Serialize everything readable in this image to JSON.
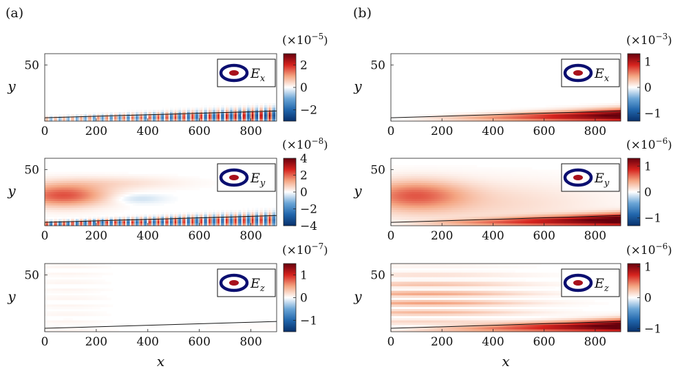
{
  "panel_labels": [
    "(a)",
    "(b)"
  ],
  "chart_data": [
    {
      "type": "heatmap",
      "panel": "(a)",
      "quantity": "Ex",
      "legend_label": "E",
      "legend_sub": "x",
      "xlabel": "",
      "ylabel": "y",
      "xlim": [
        0,
        900
      ],
      "ylim": [
        0,
        60
      ],
      "xticks": [
        0,
        200,
        400,
        600,
        800
      ],
      "yticks": [
        50
      ],
      "colorbar_exponent": "−5",
      "colorbar_limits": [
        -3,
        3
      ],
      "colorbar_ticks": [
        -2,
        0,
        2
      ],
      "colorbar_ticklabels": [
        "−2",
        "0",
        "2"
      ],
      "boundary_layer": {
        "x": [
          0,
          900
        ],
        "y": [
          3,
          9
        ]
      },
      "pattern": "oscillating near wall",
      "amplitude": 1.0
    },
    {
      "type": "heatmap",
      "panel": "(a)",
      "quantity": "Ey",
      "legend_label": "E",
      "legend_sub": "y",
      "xlabel": "",
      "ylabel": "y",
      "xlim": [
        0,
        900
      ],
      "ylim": [
        0,
        60
      ],
      "xticks": [
        0,
        200,
        400,
        600,
        800
      ],
      "yticks": [
        50
      ],
      "colorbar_exponent": "−8",
      "colorbar_limits": [
        -4,
        4
      ],
      "colorbar_ticks": [
        -4,
        -2,
        0,
        2,
        4
      ],
      "colorbar_ticklabels": [
        "−4",
        "−2",
        "0",
        "2",
        "4"
      ],
      "boundary_layer": {
        "x": [
          0,
          900
        ],
        "y": [
          3,
          9
        ]
      },
      "pattern": "freestream plus oscillating wall",
      "amplitude": 1.0
    },
    {
      "type": "heatmap",
      "panel": "(a)",
      "quantity": "Ez",
      "legend_label": "E",
      "legend_sub": "z",
      "xlabel": "x",
      "ylabel": "y",
      "xlim": [
        0,
        900
      ],
      "ylim": [
        0,
        60
      ],
      "xticks": [
        0,
        200,
        400,
        600,
        800
      ],
      "yticks": [
        50
      ],
      "colorbar_exponent": "−7",
      "colorbar_limits": [
        -1.5,
        1.5
      ],
      "colorbar_ticks": [
        -1,
        0,
        1
      ],
      "colorbar_ticklabels": [
        "−1",
        "0",
        "1"
      ],
      "boundary_layer": {
        "x": [
          0,
          900
        ],
        "y": [
          3,
          9
        ]
      },
      "pattern": "faint",
      "amplitude": 0.25
    },
    {
      "type": "heatmap",
      "panel": "(b)",
      "quantity": "Ex",
      "legend_label": "E",
      "legend_sub": "x",
      "xlabel": "",
      "ylabel": "y",
      "xlim": [
        0,
        900
      ],
      "ylim": [
        0,
        60
      ],
      "xticks": [
        0,
        200,
        400,
        600,
        800
      ],
      "yticks": [
        50
      ],
      "colorbar_exponent": "−3",
      "colorbar_limits": [
        -1.3,
        1.3
      ],
      "colorbar_ticks": [
        -1,
        0,
        1
      ],
      "colorbar_ticklabels": [
        "−1",
        "0",
        "1"
      ],
      "boundary_layer": {
        "x": [
          0,
          900
        ],
        "y": [
          3,
          9
        ]
      },
      "pattern": "wall growing",
      "amplitude": 1.0
    },
    {
      "type": "heatmap",
      "panel": "(b)",
      "quantity": "Ey",
      "legend_label": "E",
      "legend_sub": "y",
      "xlabel": "",
      "ylabel": "y",
      "xlim": [
        0,
        900
      ],
      "ylim": [
        0,
        60
      ],
      "xticks": [
        0,
        200,
        400,
        600,
        800
      ],
      "yticks": [
        50
      ],
      "colorbar_exponent": "−6",
      "colorbar_limits": [
        -1.3,
        1.3
      ],
      "colorbar_ticks": [
        -1,
        0,
        1
      ],
      "colorbar_ticklabels": [
        "−1",
        "0",
        "1"
      ],
      "boundary_layer": {
        "x": [
          0,
          900
        ],
        "y": [
          3,
          9
        ]
      },
      "pattern": "freestream plus wall growing",
      "amplitude": 1.0
    },
    {
      "type": "heatmap",
      "panel": "(b)",
      "quantity": "Ez",
      "legend_label": "E",
      "legend_sub": "z",
      "xlabel": "x",
      "ylabel": "y",
      "xlim": [
        0,
        900
      ],
      "ylim": [
        0,
        60
      ],
      "xticks": [
        0,
        200,
        400,
        600,
        800
      ],
      "yticks": [
        50
      ],
      "colorbar_exponent": "−6",
      "colorbar_limits": [
        -1.1,
        1.1
      ],
      "colorbar_ticks": [
        -1,
        0,
        1
      ],
      "colorbar_ticklabels": [
        "−1",
        "0",
        "1"
      ],
      "boundary_layer": {
        "x": [
          0,
          900
        ],
        "y": [
          3,
          9
        ]
      },
      "pattern": "streaks plus wall growing",
      "amplitude": 1.0
    }
  ],
  "colors": {
    "colormap": [
      "#08306b",
      "#2166ac",
      "#6aa5d6",
      "#ffffff",
      "#f4a582",
      "#d6231e",
      "#67000d"
    ],
    "legend_ring": "#0b0f70",
    "legend_core": "#a8121c",
    "boundary_line": "#111111"
  }
}
